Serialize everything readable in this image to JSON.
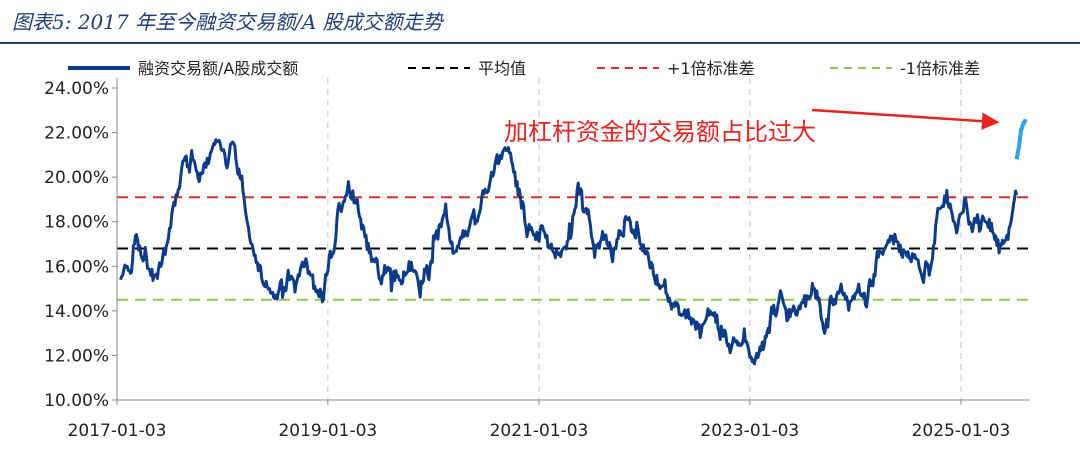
{
  "figure": {
    "title": "图表5:  2017 年至今融资交易额/A 股成交额走势"
  },
  "chart_data": {
    "type": "line",
    "title": "",
    "xlabel": "",
    "ylabel": "",
    "ylim": [
      10,
      24
    ],
    "y_ticks": [
      "10.00%",
      "12.00%",
      "14.00%",
      "16.00%",
      "18.00%",
      "20.00%",
      "22.00%",
      "24.00%"
    ],
    "x_ticks": [
      "2017-01-03",
      "2019-01-03",
      "2021-01-03",
      "2023-01-03",
      "2025-01-03"
    ],
    "x_range": [
      "2017-01-03",
      "2025-08-30"
    ],
    "grid": "vertical dashed",
    "legend_position": "top",
    "colors": {
      "series": "#0b3c8c",
      "recent": "#2ea2f0",
      "mean": "#000000",
      "plus1sd": "#d92b2b",
      "minus1sd": "#8cc84b",
      "annotation": "#e8231f"
    },
    "series": [
      {
        "name": "融资交易额/A股成交额",
        "x": [
          "2017-01",
          "2017-02",
          "2017-03",
          "2017-04",
          "2017-05",
          "2017-06",
          "2017-07",
          "2017-08",
          "2017-09",
          "2017-10",
          "2017-11",
          "2017-12",
          "2018-01",
          "2018-02",
          "2018-03",
          "2018-04",
          "2018-05",
          "2018-06",
          "2018-07",
          "2018-08",
          "2018-09",
          "2018-10",
          "2018-11",
          "2018-12",
          "2019-01",
          "2019-02",
          "2019-03",
          "2019-04",
          "2019-05",
          "2019-06",
          "2019-07",
          "2019-08",
          "2019-09",
          "2019-10",
          "2019-11",
          "2019-12",
          "2020-01",
          "2020-02",
          "2020-03",
          "2020-04",
          "2020-05",
          "2020-06",
          "2020-07",
          "2020-08",
          "2020-09",
          "2020-10",
          "2020-11",
          "2020-12",
          "2021-01",
          "2021-02",
          "2021-03",
          "2021-04",
          "2021-05",
          "2021-06",
          "2021-07",
          "2021-08",
          "2021-09",
          "2021-10",
          "2021-11",
          "2021-12",
          "2022-01",
          "2022-02",
          "2022-03",
          "2022-04",
          "2022-05",
          "2022-06",
          "2022-07",
          "2022-08",
          "2022-09",
          "2022-10",
          "2022-11",
          "2022-12",
          "2023-01",
          "2023-02",
          "2023-03",
          "2023-04",
          "2023-05",
          "2023-06",
          "2023-07",
          "2023-08",
          "2023-09",
          "2023-10",
          "2023-11",
          "2023-12",
          "2024-01",
          "2024-02",
          "2024-03",
          "2024-04",
          "2024-05",
          "2024-06",
          "2024-07",
          "2024-08",
          "2024-09",
          "2024-10",
          "2024-11",
          "2024-12",
          "2025-01",
          "2025-02",
          "2025-03",
          "2025-04",
          "2025-05",
          "2025-06",
          "2025-07"
        ],
        "values": [
          15.4,
          15.8,
          17.2,
          16.4,
          15.6,
          16.8,
          18.6,
          20.4,
          20.8,
          19.8,
          20.6,
          21.6,
          20.6,
          21.4,
          19.4,
          17.0,
          16.0,
          15.0,
          14.8,
          15.4,
          15.2,
          16.0,
          15.0,
          14.4,
          16.4,
          18.6,
          19.8,
          19.0,
          17.4,
          16.2,
          15.6,
          15.4,
          15.2,
          15.8,
          15.0,
          15.6,
          17.6,
          18.8,
          16.6,
          17.6,
          18.2,
          18.6,
          19.6,
          20.6,
          21.2,
          19.6,
          18.0,
          17.4,
          17.8,
          17.0,
          16.6,
          17.2,
          19.4,
          18.6,
          16.4,
          17.2,
          16.2,
          17.4,
          18.0,
          17.4,
          16.6,
          15.6,
          15.4,
          14.2,
          13.8,
          13.4,
          12.8,
          13.8,
          13.2,
          12.6,
          12.6,
          13.2,
          11.8,
          12.6,
          13.6,
          14.6,
          13.6,
          13.8,
          14.2,
          15.0,
          13.2,
          14.4,
          15.2,
          14.4,
          15.2,
          14.6,
          16.2,
          16.8,
          17.0,
          16.4,
          16.2,
          15.8,
          15.6,
          18.6,
          19.4,
          17.8,
          19.0,
          17.8,
          18.0,
          17.6,
          16.6,
          17.2,
          19.2
        ]
      },
      {
        "name": "",
        "x": [
          "2025-07",
          "2025-08"
        ],
        "values": [
          20.8,
          22.6
        ]
      },
      {
        "name": "平均值",
        "constant": 16.8
      },
      {
        "name": "+1倍标准差",
        "constant": 19.1
      },
      {
        "name": "-1倍标准差",
        "constant": 14.5
      }
    ],
    "annotation": {
      "text": "加杠杆资金的交易额占比过大",
      "points_to": [
        "2025-08",
        22.6
      ]
    }
  }
}
